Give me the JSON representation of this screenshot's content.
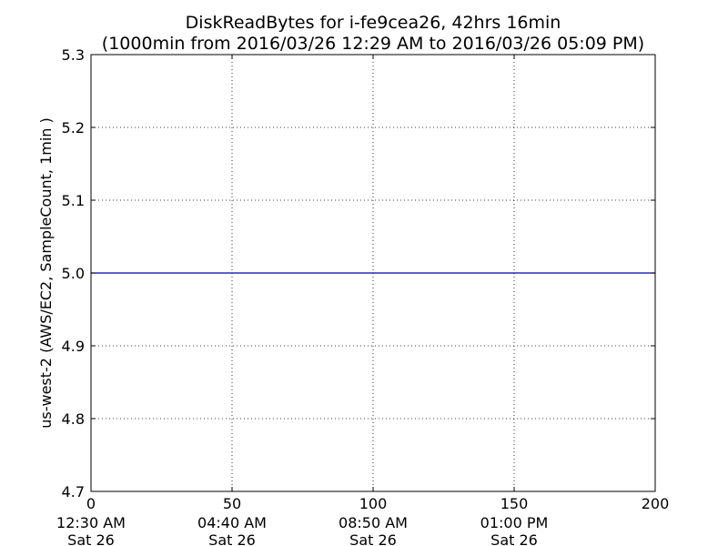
{
  "chart_data": {
    "type": "line",
    "title_line1": "DiskReadBytes for i-fe9cea26, 42hrs 16min",
    "title_line2": "(1000min from 2016/03/26 12:29 AM to 2016/03/26 05:09 PM)",
    "ylabel": "us-west-2 (AWS/EC2, SampleCount, 1min )",
    "xlim": [
      0,
      200
    ],
    "ylim": [
      4.7,
      5.3
    ],
    "grid": true,
    "x_ticks": [
      {
        "value": 0,
        "label": "0",
        "time": "12:30 AM",
        "day": "Sat 26"
      },
      {
        "value": 50,
        "label": "50",
        "time": "04:40 AM",
        "day": "Sat 26"
      },
      {
        "value": 100,
        "label": "100",
        "time": "08:50 AM",
        "day": "Sat 26"
      },
      {
        "value": 150,
        "label": "150",
        "time": "01:00 PM",
        "day": "Sat 26"
      },
      {
        "value": 200,
        "label": "200",
        "time": "",
        "day": ""
      }
    ],
    "y_ticks": [
      {
        "value": 4.7,
        "label": "4.7"
      },
      {
        "value": 4.8,
        "label": "4.8"
      },
      {
        "value": 4.9,
        "label": "4.9"
      },
      {
        "value": 5.0,
        "label": "5.0"
      },
      {
        "value": 5.1,
        "label": "5.1"
      },
      {
        "value": 5.2,
        "label": "5.2"
      },
      {
        "value": 5.3,
        "label": "5.3"
      }
    ],
    "series": [
      {
        "color": "#0000aa",
        "x": [
          0,
          200
        ],
        "y": [
          5.0,
          5.0
        ]
      }
    ]
  }
}
